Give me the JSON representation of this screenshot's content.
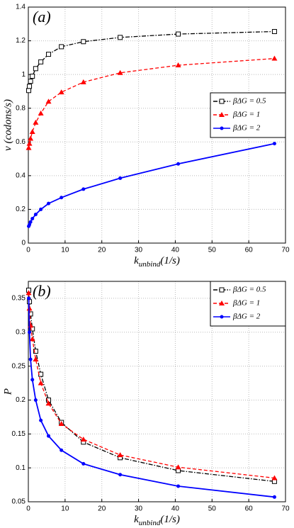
{
  "chart_data": [
    {
      "type": "line",
      "annotation": "(a)",
      "ylabel": "v (codons/s)",
      "xlabel": {
        "main": "k",
        "sub": "unbind",
        "unit": "(1/s)"
      },
      "x": [
        0.1,
        0.3,
        0.6,
        1.1,
        2,
        3.4,
        5.5,
        9,
        15,
        25,
        40.8,
        67
      ],
      "xlim": [
        0,
        70
      ],
      "xticks": [
        0,
        10,
        20,
        30,
        40,
        50,
        60,
        70
      ],
      "ylim": [
        0,
        1.4
      ],
      "yticks": [
        0,
        0.2,
        0.4,
        0.6,
        0.8,
        1,
        1.2,
        1.4
      ],
      "grid": true,
      "legend": "center right",
      "series": [
        {
          "name": "βΔG = 0.5",
          "color": "#000000",
          "linestyle": "dashdot",
          "marker": "square-open",
          "values": [
            0.905,
            0.93,
            0.96,
            0.99,
            1.035,
            1.075,
            1.12,
            1.165,
            1.195,
            1.22,
            1.24,
            1.255
          ]
        },
        {
          "name": "βΔG = 1",
          "color": "#ff0000",
          "linestyle": "dashed",
          "marker": "triangle",
          "values": [
            0.565,
            0.59,
            0.62,
            0.66,
            0.715,
            0.77,
            0.84,
            0.895,
            0.955,
            1.01,
            1.055,
            1.095
          ]
        },
        {
          "name": "βΔG = 2",
          "color": "#0000ff",
          "linestyle": "solid",
          "marker": "circle",
          "values": [
            0.1,
            0.11,
            0.125,
            0.145,
            0.17,
            0.2,
            0.235,
            0.27,
            0.32,
            0.385,
            0.47,
            0.59
          ]
        }
      ]
    },
    {
      "type": "line",
      "annotation": "(b)",
      "ylabel": "P",
      "xlabel": {
        "main": "k",
        "sub": "unbind",
        "unit": "(1/s)"
      },
      "x": [
        0.1,
        0.3,
        0.6,
        1.1,
        2,
        3.4,
        5.5,
        9,
        15,
        25,
        40.8,
        67
      ],
      "xlim": [
        0,
        70
      ],
      "xticks": [
        0,
        10,
        20,
        30,
        40,
        50,
        60,
        70
      ],
      "ylim": [
        0.05,
        0.375
      ],
      "yticks": [
        0.05,
        0.1,
        0.15,
        0.2,
        0.25,
        0.3,
        0.35
      ],
      "grid": true,
      "legend": "upper right",
      "series": [
        {
          "name": "βΔG = 0.5",
          "color": "#000000",
          "linestyle": "dashdot",
          "marker": "square-open",
          "values": [
            0.362,
            0.345,
            0.327,
            0.305,
            0.272,
            0.238,
            0.2,
            0.167,
            0.138,
            0.115,
            0.096,
            0.08
          ]
        },
        {
          "name": "βΔG = 1",
          "color": "#ff0000",
          "linestyle": "dashed",
          "marker": "triangle",
          "values": [
            0.358,
            0.335,
            0.31,
            0.29,
            0.26,
            0.225,
            0.195,
            0.165,
            0.142,
            0.119,
            0.101,
            0.085
          ]
        },
        {
          "name": "βΔG = 2",
          "color": "#0000ff",
          "linestyle": "solid",
          "marker": "circle",
          "values": [
            0.35,
            0.3,
            0.26,
            0.23,
            0.2,
            0.17,
            0.147,
            0.126,
            0.106,
            0.09,
            0.073,
            0.057
          ]
        }
      ]
    }
  ]
}
